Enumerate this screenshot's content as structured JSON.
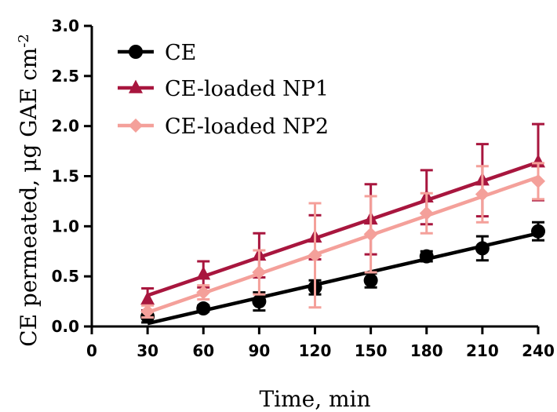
{
  "chart_data": {
    "type": "line",
    "xlabel": "Time, min",
    "ylabel": "CE permeated, μg GAE cm",
    "ylabel_superscript": "-2",
    "xlim": [
      0,
      240
    ],
    "ylim": [
      0,
      3.0
    ],
    "x_ticks": [
      0,
      30,
      60,
      90,
      120,
      150,
      180,
      210,
      240
    ],
    "y_ticks": [
      0.0,
      0.5,
      1.0,
      1.5,
      2.0,
      2.5,
      3.0
    ],
    "x_tick_labels": [
      "0",
      "30",
      "60",
      "90",
      "120",
      "150",
      "180",
      "210",
      "240"
    ],
    "y_tick_labels": [
      "0.0",
      "0.5",
      "1.0",
      "1.5",
      "2.0",
      "2.5",
      "3.0"
    ],
    "grid": false,
    "legend_position": "top-left",
    "x": [
      30,
      60,
      90,
      120,
      150,
      180,
      210,
      240
    ],
    "series": [
      {
        "name": "CE",
        "color": "#000000",
        "marker": "circle",
        "values": [
          0.1,
          0.18,
          0.25,
          0.39,
          0.46,
          0.7,
          0.78,
          0.95
        ],
        "error": [
          0.06,
          0.03,
          0.09,
          0.07,
          0.07,
          0.05,
          0.12,
          0.09
        ],
        "fit": [
          0.03,
          0.93
        ]
      },
      {
        "name": "CE-loaded NP1",
        "color": "#a8163e",
        "marker": "triangle",
        "values": [
          0.27,
          0.52,
          0.71,
          0.89,
          1.07,
          1.29,
          1.46,
          1.64
        ],
        "error": [
          0.11,
          0.13,
          0.22,
          0.22,
          0.35,
          0.27,
          0.36,
          0.38
        ],
        "fit": [
          0.31,
          1.64
        ]
      },
      {
        "name": "CE-loaded NP2",
        "color": "#f4a09a",
        "marker": "diamond",
        "values": [
          0.15,
          0.34,
          0.54,
          0.71,
          0.92,
          1.13,
          1.32,
          1.45
        ],
        "error": [
          0.06,
          0.07,
          0.22,
          0.52,
          0.38,
          0.2,
          0.28,
          0.18
        ],
        "fit": [
          0.14,
          1.49
        ]
      }
    ]
  }
}
